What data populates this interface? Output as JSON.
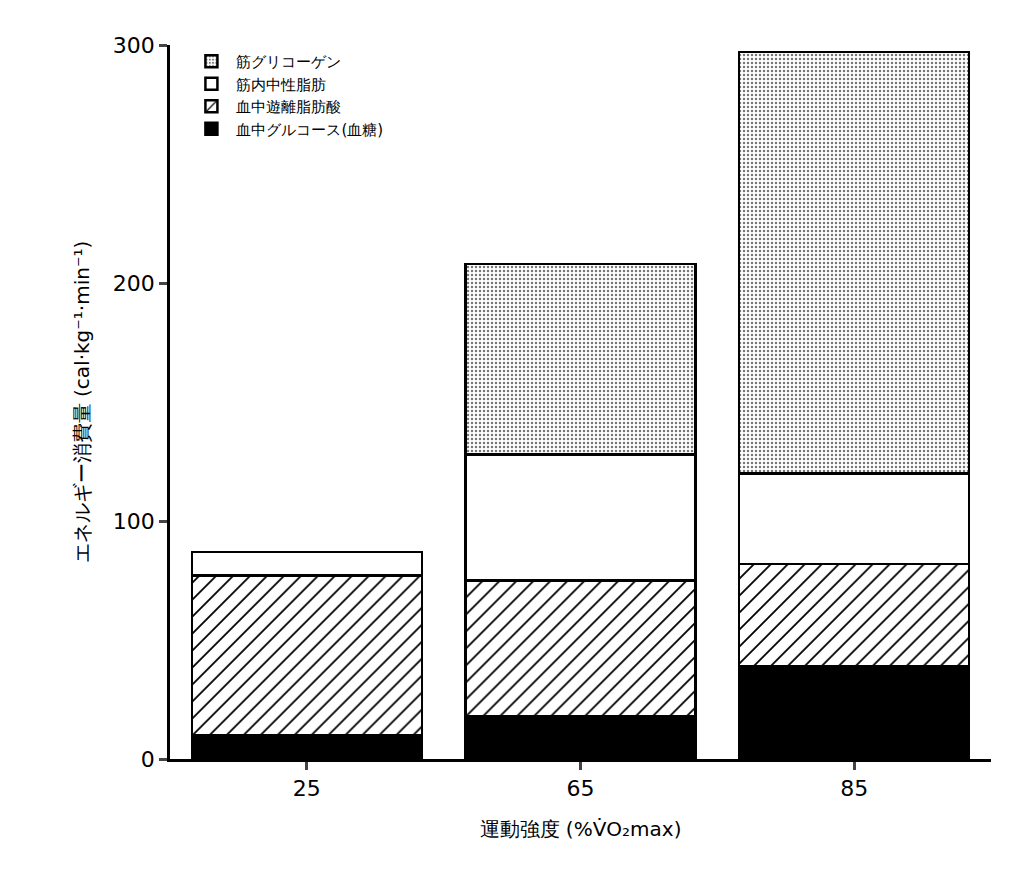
{
  "chart_data": {
    "type": "bar",
    "stacked": true,
    "x_label": "運動強度 (%V̇O₂max)",
    "y_label": "エネルギー消費量 (cal·kg⁻¹·min⁻¹)",
    "categories": [
      "25",
      "65",
      "85"
    ],
    "series": [
      {
        "name": "血中グルコース(血糖)",
        "color": "#000000",
        "marker": "solid",
        "values": [
          10,
          18,
          39
        ]
      },
      {
        "name": "血中遊離脂肪酸",
        "color": "#ffffff",
        "marker": "hatch",
        "values": [
          67,
          57,
          43
        ]
      },
      {
        "name": "筋内中性脂肪",
        "color": "#ffffff",
        "marker": "solid",
        "values": [
          10,
          53,
          38
        ]
      },
      {
        "name": "筋グリコーゲン",
        "color": "#e6e6e6",
        "marker": "dots",
        "values": [
          0,
          80,
          177
        ]
      }
    ],
    "ylim": [
      0,
      300
    ],
    "yticks": [
      0,
      100,
      200,
      300
    ],
    "grid": false,
    "legend": "upper left"
  }
}
